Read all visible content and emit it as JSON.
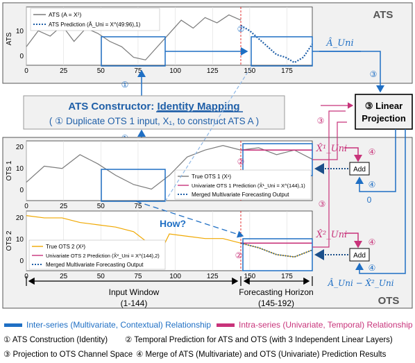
{
  "ats_panel": {
    "title": "ATS",
    "ylabel": "ATS",
    "yticks": [
      "10",
      "0"
    ],
    "xticks": [
      "0",
      "25",
      "50",
      "75",
      "100",
      "125",
      "150",
      "175"
    ],
    "legend": [
      "ATS (A = X¹)",
      "ATS Prediction (Â_Uni = X^(49:96),1)"
    ],
    "marker_2": "②",
    "output_label": "Â_Uni",
    "marker_3": "③"
  },
  "constructor": {
    "marker_top": "①",
    "marker_bottom": "①",
    "title_prefix": "ATS Constructor: ",
    "title_emph": "Identity Mapping",
    "subtitle": "( ① Duplicate OTS 1 input, X₁, to construct ATS A )"
  },
  "projection": {
    "label_line1": "③ Linear",
    "label_line2": "Projection"
  },
  "ots_panel": {
    "title": "OTS",
    "ots1_ylabel": "OTS 1",
    "ots1_yticks": [
      "20",
      "10",
      "0"
    ],
    "ots1_xticks": [
      "0",
      "25",
      "50",
      "75"
    ],
    "ots1_legend": [
      "True OTS 1 (X¹)",
      "Univariate OTS 1 Prediction (X̂¹_Uni = X^(144),1)",
      "Merged Multivariate Forecasting Output"
    ],
    "ots2_ylabel": "OTS 2",
    "ots2_yticks": [
      "20",
      "10",
      "0"
    ],
    "ots2_xticks": [
      "0",
      "25",
      "50",
      "75",
      "100",
      "125",
      "150",
      "175"
    ],
    "ots2_legend": [
      "True OTS 2 (X²)",
      "Univariate OTS 2 Prediction (X̂²_Uni = X^(144),2)",
      "Merged Multivariate Forecasting Output"
    ],
    "how_label": "How?",
    "marker_2a": "②",
    "marker_2b": "②",
    "x1_label": "X̂¹_Uni",
    "x2_label": "X̂²_Uni",
    "marker_4a": "④",
    "marker_4b": "④",
    "marker_4c": "④",
    "marker_4d": "④",
    "marker_3a": "③",
    "marker_3b": "③",
    "add_label": "Add",
    "zero_label": "0",
    "diff_label": "Â_Uni − X̂²_Uni",
    "input_window_label": "Input Window",
    "input_window_range": "(1-144)",
    "horizon_label": "Forecasting Horizon",
    "horizon_range": "(145-192)"
  },
  "legend_bottom": {
    "inter": "Inter-series (Multivariate, Contextual) Relationship",
    "intra": "Intra-series (Univariate, Temporal) Relationship",
    "step1": "① ATS Construction (Identity)",
    "step2": "② Temporal Prediction for ATS and OTS (with 3 Independent Linear Layers)",
    "step3": "③ Projection to OTS Channel Space",
    "step4": "④ Merge of ATS (Multivariate) and OTS (Univariate) Prediction Results"
  },
  "colors": {
    "inter": "#1f6fc4",
    "intra": "#c8337a",
    "ats_line": "#7a7a7a",
    "ots2_line": "#f0a800",
    "pred_dots": "#1f5fa8"
  },
  "chart_data": [
    {
      "type": "line",
      "title": "ATS",
      "xlabel": "",
      "ylabel": "ATS",
      "xlim": [
        0,
        192
      ],
      "ylim": [
        -5,
        17
      ],
      "series": [
        {
          "name": "ATS (A = X¹)",
          "x": [
            0,
            8,
            16,
            24,
            32,
            40,
            48,
            56,
            64,
            72,
            80,
            88,
            96,
            104,
            112,
            120,
            128,
            136,
            144
          ],
          "values": [
            2,
            8,
            6,
            10,
            4,
            9,
            7,
            4,
            2,
            -2,
            -3,
            2,
            7,
            12,
            9,
            13,
            11,
            14,
            12
          ]
        },
        {
          "name": "ATS Prediction (Â_Uni = X^(49:96),1)",
          "x": [
            144,
            150,
            156,
            162,
            168,
            174,
            180,
            186,
            192
          ],
          "values": [
            10,
            8,
            5,
            2,
            -1,
            -2,
            -4,
            -2,
            3
          ]
        }
      ]
    },
    {
      "type": "line",
      "ylabel": "OTS 1",
      "xlim": [
        0,
        192
      ],
      "ylim": [
        -3,
        23
      ],
      "series": [
        {
          "name": "True OTS 1 (X¹)",
          "x": [
            0,
            12,
            24,
            36,
            48,
            60,
            72,
            84,
            96,
            108,
            120,
            132,
            144,
            156,
            168,
            180,
            192
          ],
          "values": [
            5,
            12,
            11,
            17,
            13,
            8,
            4,
            2,
            8,
            16,
            19,
            21,
            19,
            20,
            17,
            19,
            15
          ]
        },
        {
          "name": "Univariate OTS 1 Prediction (X̂¹_Uni = X^(144),1)",
          "x": [
            144,
            192
          ],
          "values": [
            19,
            19
          ]
        }
      ]
    },
    {
      "type": "line",
      "ylabel": "OTS 2",
      "xlim": [
        0,
        192
      ],
      "ylim": [
        -3,
        23
      ],
      "series": [
        {
          "name": "True OTS 2 (X²)",
          "x": [
            0,
            12,
            24,
            36,
            48,
            60,
            72,
            84,
            90,
            96,
            108,
            120,
            132,
            144,
            156,
            168,
            180,
            192
          ],
          "values": [
            21,
            20,
            20,
            18,
            17,
            16,
            14,
            8,
            5,
            13,
            12,
            11,
            11,
            9,
            7,
            4,
            3,
            6
          ]
        },
        {
          "name": "Univariate OTS 2 Prediction (X̂²_Uni = X^(144),2)",
          "x": [
            144,
            192
          ],
          "values": [
            9,
            9
          ]
        }
      ]
    }
  ]
}
